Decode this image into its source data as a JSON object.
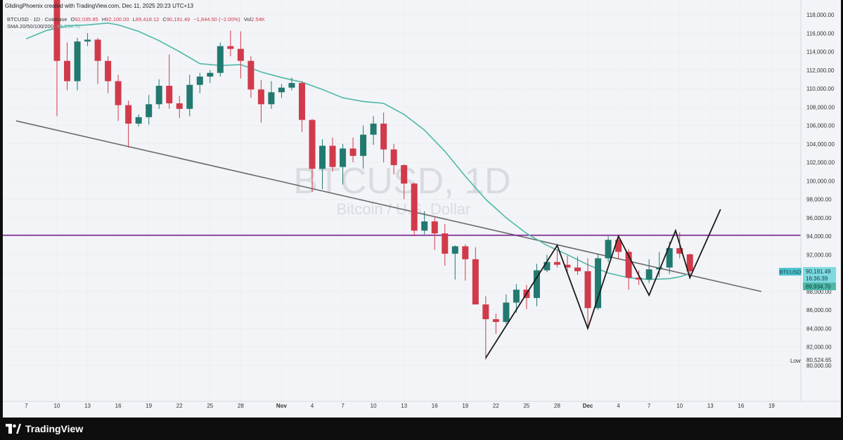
{
  "header": {
    "credit": "GlidingPhoenix created with TradingView.com, Dec 11, 2025 20:23 UTC+13",
    "symbol": "BTCUSD · 1D · Coinbase",
    "ohlc": {
      "o_label": "O",
      "o": "92,035.85",
      "h_label": "H",
      "h": "92,100.00",
      "l_label": "L",
      "l": "89,418.12",
      "c_label": "C",
      "c": "90,191.49",
      "change": "−1,844.50 (−2.00%)",
      "vol_label": "Vol",
      "vol": "2.54K"
    },
    "sma_label": "SMA 20/50/100/200",
    "sma_value": "89,934.70"
  },
  "watermark": {
    "symbol": "BTCUSD, 1D",
    "name": "Bitcoin / U.S. Dollar"
  },
  "price_scale": {
    "symbol_tag": "BTCUSD",
    "last_price": "90,191.49",
    "countdown": "16:36:39",
    "sma_price": "89,934.70",
    "low_label": "Low",
    "low_price": "80,524.65"
  },
  "footer": {
    "brand": "TradingView"
  },
  "colors": {
    "up": "#22796f",
    "down": "#d13a4a",
    "sma": "#4fb8a8",
    "resistance": "#7b1f8f",
    "trendline": "#6b6b6b",
    "pattern": "#1a1a1a",
    "background": "#f2f4f8"
  },
  "chart_data": {
    "type": "candlestick",
    "symbol": "BTCUSD",
    "interval": "1D",
    "exchange": "Coinbase",
    "ylim": [
      79000,
      118500
    ],
    "y_ticks": [
      80000,
      82000,
      84000,
      86000,
      88000,
      90000,
      92000,
      94000,
      96000,
      98000,
      100000,
      102000,
      104000,
      106000,
      108000,
      110000,
      112000,
      114000,
      116000,
      118000
    ],
    "y_tick_labels": [
      "80,000.00",
      "82,000.00",
      "84,000.00",
      "86,000.00",
      "88,000.00",
      "90,000.00",
      "92,000.00",
      "94,000.00",
      "96,000.00",
      "98,000.00",
      "100,000.00",
      "102,000.00",
      "104,000.00",
      "106,000.00",
      "108,000.00",
      "110,000.00",
      "112,000.00",
      "114,000.00",
      "116,000.00",
      "118,000.00"
    ],
    "x_ticks": [
      {
        "day": -1,
        "label": "7"
      },
      {
        "day": 2,
        "label": "10"
      },
      {
        "day": 5,
        "label": "13"
      },
      {
        "day": 8,
        "label": "16"
      },
      {
        "day": 11,
        "label": "19"
      },
      {
        "day": 14,
        "label": "22"
      },
      {
        "day": 17,
        "label": "25"
      },
      {
        "day": 20,
        "label": "28"
      },
      {
        "day": 24,
        "label": "Nov"
      },
      {
        "day": 27,
        "label": "4"
      },
      {
        "day": 30,
        "label": "7"
      },
      {
        "day": 33,
        "label": "10"
      },
      {
        "day": 36,
        "label": "13"
      },
      {
        "day": 39,
        "label": "16"
      },
      {
        "day": 42,
        "label": "19"
      },
      {
        "day": 45,
        "label": "22"
      },
      {
        "day": 48,
        "label": "25"
      },
      {
        "day": 51,
        "label": "28"
      },
      {
        "day": 54,
        "label": "Dec"
      },
      {
        "day": 57,
        "label": "4"
      },
      {
        "day": 60,
        "label": "7"
      },
      {
        "day": 63,
        "label": "10"
      },
      {
        "day": 66,
        "label": "13"
      },
      {
        "day": 69,
        "label": "16"
      },
      {
        "day": 72,
        "label": "19"
      }
    ],
    "candles": [
      {
        "day": 2,
        "o": 121500,
        "h": 121800,
        "l": 107000,
        "c": 113000
      },
      {
        "day": 3,
        "o": 113000,
        "h": 115000,
        "l": 109800,
        "c": 110800
      },
      {
        "day": 4,
        "o": 110800,
        "h": 115500,
        "l": 109800,
        "c": 115100
      },
      {
        "day": 5,
        "o": 115100,
        "h": 116000,
        "l": 114600,
        "c": 115300
      },
      {
        "day": 6,
        "o": 115300,
        "h": 115500,
        "l": 110500,
        "c": 113000
      },
      {
        "day": 7,
        "o": 113000,
        "h": 113500,
        "l": 109500,
        "c": 110800
      },
      {
        "day": 8,
        "o": 110800,
        "h": 111500,
        "l": 106500,
        "c": 108200
      },
      {
        "day": 9,
        "o": 108200,
        "h": 108700,
        "l": 103600,
        "c": 106200
      },
      {
        "day": 10,
        "o": 106200,
        "h": 107200,
        "l": 105900,
        "c": 106900
      },
      {
        "day": 11,
        "o": 106900,
        "h": 109300,
        "l": 106100,
        "c": 108300
      },
      {
        "day": 12,
        "o": 108300,
        "h": 111000,
        "l": 107800,
        "c": 110300
      },
      {
        "day": 13,
        "o": 110300,
        "h": 113700,
        "l": 107800,
        "c": 108400
      },
      {
        "day": 14,
        "o": 108400,
        "h": 109200,
        "l": 106800,
        "c": 107800
      },
      {
        "day": 15,
        "o": 107800,
        "h": 111500,
        "l": 107000,
        "c": 110400
      },
      {
        "day": 16,
        "o": 110400,
        "h": 111700,
        "l": 109500,
        "c": 111300
      },
      {
        "day": 17,
        "o": 111300,
        "h": 112000,
        "l": 110600,
        "c": 111700
      },
      {
        "day": 18,
        "o": 111700,
        "h": 115000,
        "l": 111300,
        "c": 114600
      },
      {
        "day": 19,
        "o": 114600,
        "h": 116300,
        "l": 113500,
        "c": 114300
      },
      {
        "day": 20,
        "o": 114300,
        "h": 116200,
        "l": 111100,
        "c": 113000
      },
      {
        "day": 21,
        "o": 113000,
        "h": 113500,
        "l": 109000,
        "c": 109900
      },
      {
        "day": 22,
        "o": 109900,
        "h": 110900,
        "l": 106300,
        "c": 108300
      },
      {
        "day": 23,
        "o": 108300,
        "h": 110800,
        "l": 107800,
        "c": 109600
      },
      {
        "day": 24,
        "o": 109600,
        "h": 110500,
        "l": 109000,
        "c": 110100
      },
      {
        "day": 25,
        "o": 110100,
        "h": 111200,
        "l": 109800,
        "c": 110600
      },
      {
        "day": 26,
        "o": 110600,
        "h": 110800,
        "l": 105300,
        "c": 106600
      },
      {
        "day": 27,
        "o": 106600,
        "h": 106700,
        "l": 98800,
        "c": 101300
      },
      {
        "day": 28,
        "o": 101300,
        "h": 104500,
        "l": 99100,
        "c": 103800
      },
      {
        "day": 29,
        "o": 103800,
        "h": 104700,
        "l": 101000,
        "c": 101500
      },
      {
        "day": 30,
        "o": 101500,
        "h": 104000,
        "l": 99600,
        "c": 103500
      },
      {
        "day": 31,
        "o": 103500,
        "h": 104700,
        "l": 102000,
        "c": 102700
      },
      {
        "day": 32,
        "o": 102700,
        "h": 106000,
        "l": 101300,
        "c": 105000
      },
      {
        "day": 33,
        "o": 105000,
        "h": 107000,
        "l": 103900,
        "c": 106200
      },
      {
        "day": 34,
        "o": 106200,
        "h": 107400,
        "l": 102000,
        "c": 103400
      },
      {
        "day": 35,
        "o": 103400,
        "h": 104000,
        "l": 100700,
        "c": 101700
      },
      {
        "day": 36,
        "o": 101700,
        "h": 101800,
        "l": 98000,
        "c": 99700
      },
      {
        "day": 37,
        "o": 99700,
        "h": 99800,
        "l": 94000,
        "c": 94600
      },
      {
        "day": 38,
        "o": 94600,
        "h": 96700,
        "l": 94200,
        "c": 95600
      },
      {
        "day": 39,
        "o": 95600,
        "h": 96000,
        "l": 92500,
        "c": 94300
      },
      {
        "day": 40,
        "o": 94300,
        "h": 95300,
        "l": 90800,
        "c": 92100
      },
      {
        "day": 41,
        "o": 92100,
        "h": 93000,
        "l": 89300,
        "c": 92900
      },
      {
        "day": 42,
        "o": 92900,
        "h": 93100,
        "l": 89200,
        "c": 91500
      },
      {
        "day": 43,
        "o": 91500,
        "h": 92800,
        "l": 86600,
        "c": 86600
      },
      {
        "day": 44,
        "o": 86600,
        "h": 87500,
        "l": 80600,
        "c": 85000
      },
      {
        "day": 45,
        "o": 85000,
        "h": 85600,
        "l": 83400,
        "c": 84700
      },
      {
        "day": 46,
        "o": 84700,
        "h": 87700,
        "l": 84500,
        "c": 86800
      },
      {
        "day": 47,
        "o": 86800,
        "h": 88800,
        "l": 85700,
        "c": 88200
      },
      {
        "day": 48,
        "o": 88200,
        "h": 88700,
        "l": 86100,
        "c": 87300
      },
      {
        "day": 49,
        "o": 87300,
        "h": 91000,
        "l": 86400,
        "c": 90300
      },
      {
        "day": 50,
        "o": 90300,
        "h": 92000,
        "l": 90100,
        "c": 91200
      },
      {
        "day": 51,
        "o": 91200,
        "h": 92500,
        "l": 90600,
        "c": 90900
      },
      {
        "day": 52,
        "o": 90900,
        "h": 91900,
        "l": 90200,
        "c": 90600
      },
      {
        "day": 53,
        "o": 90600,
        "h": 91800,
        "l": 89800,
        "c": 90200
      },
      {
        "day": 54,
        "o": 90200,
        "h": 91600,
        "l": 84200,
        "c": 86200
      },
      {
        "day": 55,
        "o": 86200,
        "h": 92100,
        "l": 86000,
        "c": 91600
      },
      {
        "day": 56,
        "o": 91600,
        "h": 94000,
        "l": 91200,
        "c": 93600
      },
      {
        "day": 57,
        "o": 93600,
        "h": 94000,
        "l": 91500,
        "c": 92300
      },
      {
        "day": 58,
        "o": 92300,
        "h": 92600,
        "l": 88200,
        "c": 89500
      },
      {
        "day": 59,
        "o": 89500,
        "h": 90300,
        "l": 88700,
        "c": 89300
      },
      {
        "day": 60,
        "o": 89300,
        "h": 91500,
        "l": 88900,
        "c": 90400
      },
      {
        "day": 61,
        "o": 90400,
        "h": 92300,
        "l": 89600,
        "c": 90600
      },
      {
        "day": 62,
        "o": 90600,
        "h": 93400,
        "l": 89900,
        "c": 92700
      },
      {
        "day": 63,
        "o": 92700,
        "h": 94400,
        "l": 91600,
        "c": 92100
      },
      {
        "day": 64,
        "o": 92035.85,
        "h": 92100,
        "l": 89418.12,
        "c": 90191.49
      }
    ],
    "sma": [
      {
        "day": -1,
        "v": 115400
      },
      {
        "day": 1,
        "v": 116300
      },
      {
        "day": 3,
        "v": 116800
      },
      {
        "day": 5,
        "v": 116900
      },
      {
        "day": 7,
        "v": 117100
      },
      {
        "day": 8,
        "v": 116900
      },
      {
        "day": 10,
        "v": 116200
      },
      {
        "day": 12,
        "v": 115200
      },
      {
        "day": 14,
        "v": 114000
      },
      {
        "day": 16,
        "v": 112700
      },
      {
        "day": 18,
        "v": 112500
      },
      {
        "day": 20,
        "v": 112600
      },
      {
        "day": 22,
        "v": 111800
      },
      {
        "day": 24,
        "v": 111200
      },
      {
        "day": 26,
        "v": 110700
      },
      {
        "day": 28,
        "v": 109900
      },
      {
        "day": 30,
        "v": 109000
      },
      {
        "day": 32,
        "v": 108600
      },
      {
        "day": 34,
        "v": 108400
      },
      {
        "day": 36,
        "v": 107200
      },
      {
        "day": 38,
        "v": 105500
      },
      {
        "day": 40,
        "v": 103200
      },
      {
        "day": 42,
        "v": 100500
      },
      {
        "day": 44,
        "v": 98000
      },
      {
        "day": 46,
        "v": 96000
      },
      {
        "day": 48,
        "v": 94300
      },
      {
        "day": 50,
        "v": 93000
      },
      {
        "day": 52,
        "v": 92000
      },
      {
        "day": 54,
        "v": 90900
      },
      {
        "day": 56,
        "v": 90000
      },
      {
        "day": 58,
        "v": 89500
      },
      {
        "day": 60,
        "v": 89300
      },
      {
        "day": 62,
        "v": 89400
      },
      {
        "day": 63,
        "v": 89600
      },
      {
        "day": 64,
        "v": 89934.7
      }
    ],
    "resistance_level": 94100,
    "trendline": [
      {
        "day": -2,
        "v": 106500
      },
      {
        "day": 71,
        "v": 88000
      }
    ],
    "pattern_path": [
      {
        "day": 44,
        "v": 80800
      },
      {
        "day": 51,
        "v": 93000
      },
      {
        "day": 54,
        "v": 84000
      },
      {
        "day": 57,
        "v": 94000
      },
      {
        "day": 60,
        "v": 87600
      },
      {
        "day": 62.6,
        "v": 94600
      },
      {
        "day": 64,
        "v": 89500
      },
      {
        "day": 67,
        "v": 96900
      }
    ],
    "xlabel": "",
    "ylabel": ""
  }
}
